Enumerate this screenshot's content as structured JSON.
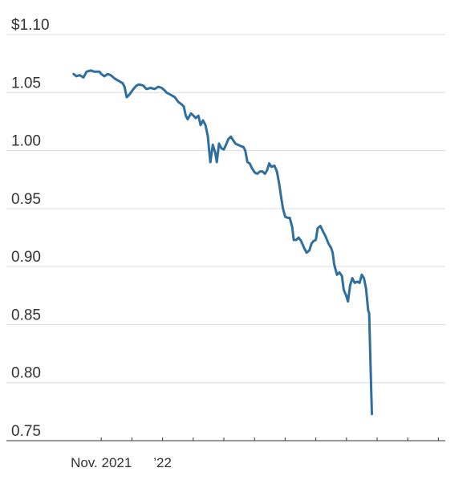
{
  "chart_data": {
    "type": "line",
    "title": "",
    "xlabel": "",
    "ylabel": "",
    "ylim": [
      0.75,
      1.1
    ],
    "xlim": [
      0,
      12
    ],
    "y_ticks": [
      {
        "value": 1.1,
        "label": "$1.10"
      },
      {
        "value": 1.05,
        "label": "1.05"
      },
      {
        "value": 1.0,
        "label": "1.00"
      },
      {
        "value": 0.95,
        "label": "0.95"
      },
      {
        "value": 0.9,
        "label": "0.90"
      },
      {
        "value": 0.85,
        "label": "0.85"
      },
      {
        "value": 0.8,
        "label": "0.80"
      },
      {
        "value": 0.75,
        "label": "0.75"
      }
    ],
    "x_ticks": [
      {
        "value": 1,
        "label": "Nov. 2021"
      },
      {
        "value": 2,
        "label": ""
      },
      {
        "value": 3,
        "label": "’22"
      },
      {
        "value": 4,
        "label": ""
      },
      {
        "value": 5,
        "label": ""
      },
      {
        "value": 6,
        "label": ""
      },
      {
        "value": 7,
        "label": ""
      },
      {
        "value": 8,
        "label": ""
      },
      {
        "value": 9,
        "label": ""
      },
      {
        "value": 10,
        "label": ""
      },
      {
        "value": 11,
        "label": ""
      },
      {
        "value": 12,
        "label": ""
      }
    ],
    "grid": true,
    "line_color": "#2f6f9f",
    "series": [
      {
        "values": [
          [
            0.1,
            1.066
          ],
          [
            0.19,
            1.064
          ],
          [
            0.29,
            1.065
          ],
          [
            0.42,
            1.063
          ],
          [
            0.52,
            1.068
          ],
          [
            0.66,
            1.069
          ],
          [
            0.77,
            1.068
          ],
          [
            0.94,
            1.068
          ],
          [
            1.0,
            1.066
          ],
          [
            1.1,
            1.064
          ],
          [
            1.21,
            1.066
          ],
          [
            1.31,
            1.065
          ],
          [
            1.44,
            1.062
          ],
          [
            1.57,
            1.06
          ],
          [
            1.7,
            1.058
          ],
          [
            1.76,
            1.055
          ],
          [
            1.83,
            1.046
          ],
          [
            1.91,
            1.048
          ],
          [
            2.05,
            1.053
          ],
          [
            2.15,
            1.056
          ],
          [
            2.23,
            1.057
          ],
          [
            2.37,
            1.056
          ],
          [
            2.47,
            1.053
          ],
          [
            2.61,
            1.054
          ],
          [
            2.74,
            1.053
          ],
          [
            2.86,
            1.055
          ],
          [
            2.97,
            1.054
          ],
          [
            3.06,
            1.052
          ],
          [
            3.13,
            1.05
          ],
          [
            3.27,
            1.048
          ],
          [
            3.4,
            1.046
          ],
          [
            3.51,
            1.042
          ],
          [
            3.61,
            1.04
          ],
          [
            3.69,
            1.038
          ],
          [
            3.76,
            1.03
          ],
          [
            3.82,
            1.027
          ],
          [
            3.93,
            1.032
          ],
          [
            4.01,
            1.03
          ],
          [
            4.08,
            1.028
          ],
          [
            4.17,
            1.03
          ],
          [
            4.24,
            1.022
          ],
          [
            4.32,
            1.026
          ],
          [
            4.4,
            1.022
          ],
          [
            4.48,
            1.012
          ],
          [
            4.52,
            1.0
          ],
          [
            4.56,
            0.99
          ],
          [
            4.64,
            1.005
          ],
          [
            4.72,
            0.998
          ],
          [
            4.77,
            0.99
          ],
          [
            4.84,
            1.006
          ],
          [
            4.92,
            1.002
          ],
          [
            5.0,
            1.001
          ],
          [
            5.07,
            1.005
          ],
          [
            5.15,
            1.01
          ],
          [
            5.23,
            1.012
          ],
          [
            5.3,
            1.009
          ],
          [
            5.38,
            1.006
          ],
          [
            5.45,
            1.005
          ],
          [
            5.54,
            1.004
          ],
          [
            5.64,
            1.003
          ],
          [
            5.7,
            1.0
          ],
          [
            5.77,
            0.99
          ],
          [
            5.84,
            0.989
          ],
          [
            5.91,
            0.985
          ],
          [
            6.01,
            0.981
          ],
          [
            6.09,
            0.98
          ],
          [
            6.18,
            0.982
          ],
          [
            6.26,
            0.982
          ],
          [
            6.34,
            0.98
          ],
          [
            6.41,
            0.983
          ],
          [
            6.48,
            0.989
          ],
          [
            6.55,
            0.986
          ],
          [
            6.65,
            0.987
          ],
          [
            6.73,
            0.982
          ],
          [
            6.8,
            0.972
          ],
          [
            6.88,
            0.958
          ],
          [
            6.93,
            0.95
          ],
          [
            7.0,
            0.943
          ],
          [
            7.08,
            0.942
          ],
          [
            7.15,
            0.942
          ],
          [
            7.23,
            0.934
          ],
          [
            7.28,
            0.923
          ],
          [
            7.36,
            0.923
          ],
          [
            7.44,
            0.925
          ],
          [
            7.52,
            0.922
          ],
          [
            7.62,
            0.916
          ],
          [
            7.7,
            0.912
          ],
          [
            7.79,
            0.914
          ],
          [
            7.86,
            0.92
          ],
          [
            7.93,
            0.922
          ],
          [
            8.0,
            0.923
          ],
          [
            8.06,
            0.933
          ],
          [
            8.15,
            0.935
          ],
          [
            8.24,
            0.93
          ],
          [
            8.32,
            0.926
          ],
          [
            8.41,
            0.92
          ],
          [
            8.5,
            0.916
          ],
          [
            8.55,
            0.912
          ],
          [
            8.6,
            0.902
          ],
          [
            8.69,
            0.893
          ],
          [
            8.77,
            0.895
          ],
          [
            8.85,
            0.892
          ],
          [
            8.91,
            0.88
          ],
          [
            8.99,
            0.875
          ],
          [
            9.05,
            0.87
          ],
          [
            9.12,
            0.884
          ],
          [
            9.19,
            0.89
          ],
          [
            9.27,
            0.886
          ],
          [
            9.35,
            0.887
          ],
          [
            9.43,
            0.886
          ],
          [
            9.5,
            0.893
          ],
          [
            9.57,
            0.89
          ],
          [
            9.64,
            0.881
          ],
          [
            9.71,
            0.862
          ],
          [
            9.74,
            0.86
          ],
          [
            9.78,
            0.82
          ],
          [
            9.83,
            0.773
          ]
        ]
      }
    ]
  }
}
